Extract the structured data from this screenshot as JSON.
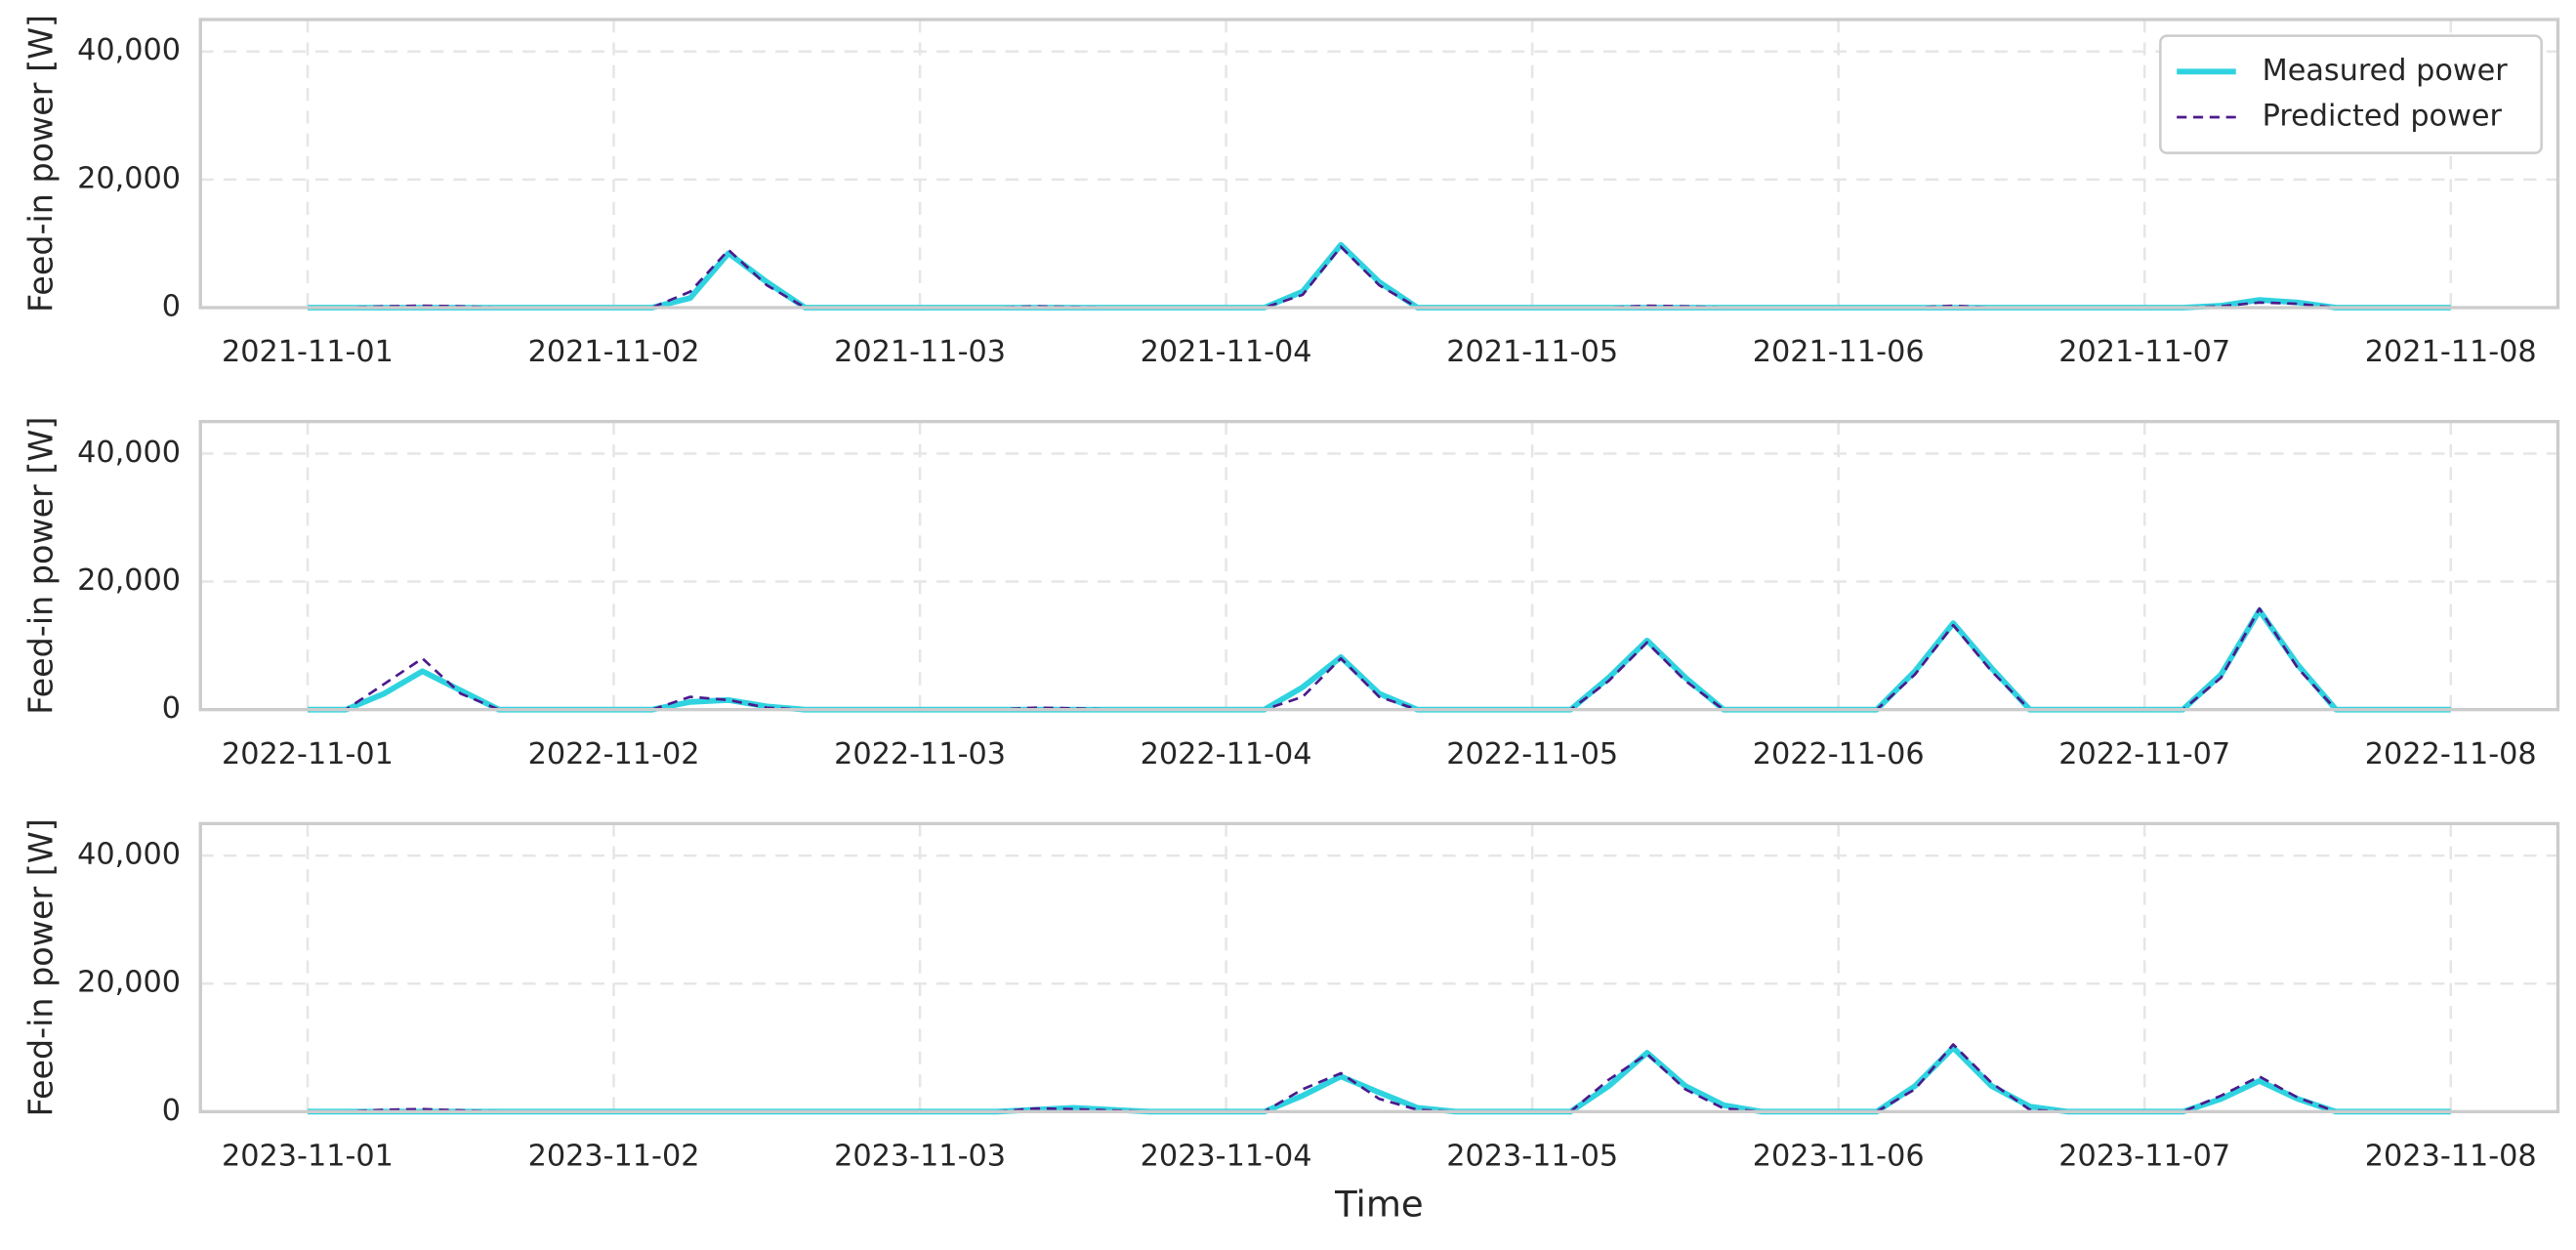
{
  "chart_data": [
    {
      "type": "line",
      "ylabel": "Feed-in power [W]",
      "x": [
        0,
        0.125,
        0.25,
        0.375,
        0.5,
        0.625,
        0.75,
        0.875,
        1,
        1.125,
        1.25,
        1.375,
        1.5,
        1.625,
        1.75,
        1.875,
        2,
        2.125,
        2.25,
        2.375,
        2.5,
        2.625,
        2.75,
        2.875,
        3,
        3.125,
        3.25,
        3.375,
        3.5,
        3.625,
        3.75,
        3.875,
        4,
        4.125,
        4.25,
        4.375,
        4.5,
        4.625,
        4.75,
        4.875,
        5,
        5.125,
        5.25,
        5.375,
        5.5,
        5.625,
        5.75,
        5.875,
        6,
        6.125,
        6.25,
        6.375,
        6.5,
        6.625,
        6.75,
        6.875,
        7
      ],
      "xlim": [
        -0.35,
        7.35
      ],
      "xticks": [
        {
          "value": 0,
          "label": "2021-11-01"
        },
        {
          "value": 1,
          "label": "2021-11-02"
        },
        {
          "value": 2,
          "label": "2021-11-03"
        },
        {
          "value": 3,
          "label": "2021-11-04"
        },
        {
          "value": 4,
          "label": "2021-11-05"
        },
        {
          "value": 5,
          "label": "2021-11-06"
        },
        {
          "value": 6,
          "label": "2021-11-07"
        },
        {
          "value": 7,
          "label": "2021-11-08"
        }
      ],
      "ylim": [
        0,
        45000
      ],
      "yticks": [
        0,
        {
          "value": 20000,
          "label": "20,000"
        },
        {
          "value": 40000,
          "label": "40,000"
        }
      ],
      "grid": true,
      "legend": "upper right",
      "series": [
        {
          "name": "Measured power",
          "color": "#2fd3e0",
          "linestyle": "solid",
          "values": [
            0,
            0,
            0,
            0,
            0,
            0,
            0,
            0,
            0,
            0,
            1500,
            8500,
            4000,
            0,
            0,
            0,
            0,
            0,
            0,
            0,
            0,
            0,
            0,
            0,
            0,
            0,
            2500,
            9800,
            4000,
            0,
            0,
            0,
            0,
            0,
            0,
            0,
            0,
            0,
            0,
            0,
            0,
            0,
            0,
            0,
            0,
            0,
            0,
            0,
            0,
            0,
            300,
            1200,
            800,
            0,
            0,
            0,
            0
          ]
        },
        {
          "name": "Predicted power",
          "color": "#4b1a8c",
          "linestyle": "dashed",
          "values": [
            0,
            0,
            200,
            300,
            200,
            0,
            0,
            0,
            0,
            0,
            2500,
            9000,
            3500,
            0,
            0,
            0,
            0,
            0,
            0,
            200,
            100,
            0,
            0,
            0,
            0,
            0,
            2000,
            9500,
            3500,
            0,
            0,
            0,
            0,
            0,
            0,
            300,
            200,
            0,
            0,
            0,
            0,
            0,
            0,
            300,
            0,
            0,
            0,
            0,
            0,
            0,
            200,
            800,
            600,
            0,
            0,
            0,
            0
          ]
        }
      ]
    },
    {
      "type": "line",
      "ylabel": "Feed-in power [W]",
      "x": [
        0,
        0.125,
        0.25,
        0.375,
        0.5,
        0.625,
        0.75,
        0.875,
        1,
        1.125,
        1.25,
        1.375,
        1.5,
        1.625,
        1.75,
        1.875,
        2,
        2.125,
        2.25,
        2.375,
        2.5,
        2.625,
        2.75,
        2.875,
        3,
        3.125,
        3.25,
        3.375,
        3.5,
        3.625,
        3.75,
        3.875,
        4,
        4.125,
        4.25,
        4.375,
        4.5,
        4.625,
        4.75,
        4.875,
        5,
        5.125,
        5.25,
        5.375,
        5.5,
        5.625,
        5.75,
        5.875,
        6,
        6.125,
        6.25,
        6.375,
        6.5,
        6.625,
        6.75,
        6.875,
        7
      ],
      "xlim": [
        -0.35,
        7.35
      ],
      "xticks": [
        {
          "value": 0,
          "label": "2022-11-01"
        },
        {
          "value": 1,
          "label": "2022-11-02"
        },
        {
          "value": 2,
          "label": "2022-11-03"
        },
        {
          "value": 3,
          "label": "2022-11-04"
        },
        {
          "value": 4,
          "label": "2022-11-05"
        },
        {
          "value": 5,
          "label": "2022-11-06"
        },
        {
          "value": 6,
          "label": "2022-11-07"
        },
        {
          "value": 7,
          "label": "2022-11-08"
        }
      ],
      "ylim": [
        0,
        45000
      ],
      "yticks": [
        0,
        {
          "value": 20000,
          "label": "20,000"
        },
        {
          "value": 40000,
          "label": "40,000"
        }
      ],
      "grid": true,
      "series": [
        {
          "color": "#2fd3e0",
          "linestyle": "solid",
          "values": [
            0,
            0,
            2500,
            6000,
            3000,
            0,
            0,
            0,
            0,
            0,
            1200,
            1500,
            500,
            0,
            0,
            0,
            0,
            0,
            0,
            0,
            0,
            0,
            0,
            0,
            0,
            0,
            3500,
            8200,
            2500,
            0,
            0,
            0,
            0,
            0,
            5000,
            10800,
            5000,
            0,
            0,
            0,
            0,
            0,
            6000,
            13500,
            6500,
            0,
            0,
            0,
            0,
            0,
            5500,
            15500,
            7000,
            0,
            0,
            0,
            0
          ]
        },
        {
          "color": "#4b1a8c",
          "linestyle": "dashed",
          "values": [
            0,
            0,
            4000,
            8000,
            2500,
            0,
            0,
            0,
            0,
            0,
            2000,
            1500,
            300,
            0,
            0,
            0,
            0,
            0,
            0,
            300,
            200,
            0,
            0,
            0,
            0,
            0,
            2000,
            8000,
            2000,
            0,
            0,
            0,
            0,
            0,
            4500,
            10500,
            4500,
            0,
            0,
            0,
            0,
            0,
            5500,
            13200,
            6000,
            0,
            0,
            0,
            0,
            0,
            5000,
            15800,
            6500,
            0,
            0,
            0,
            0
          ]
        }
      ]
    },
    {
      "type": "line",
      "ylabel": "Feed-in power [W]",
      "xlabel": "Time",
      "x": [
        0,
        0.125,
        0.25,
        0.375,
        0.5,
        0.625,
        0.75,
        0.875,
        1,
        1.125,
        1.25,
        1.375,
        1.5,
        1.625,
        1.75,
        1.875,
        2,
        2.125,
        2.25,
        2.375,
        2.5,
        2.625,
        2.75,
        2.875,
        3,
        3.125,
        3.25,
        3.375,
        3.5,
        3.625,
        3.75,
        3.875,
        4,
        4.125,
        4.25,
        4.375,
        4.5,
        4.625,
        4.75,
        4.875,
        5,
        5.125,
        5.25,
        5.375,
        5.5,
        5.625,
        5.75,
        5.875,
        6,
        6.125,
        6.25,
        6.375,
        6.5,
        6.625,
        6.75,
        6.875,
        7
      ],
      "xlim": [
        -0.35,
        7.35
      ],
      "xticks": [
        {
          "value": 0,
          "label": "2023-11-01"
        },
        {
          "value": 1,
          "label": "2023-11-02"
        },
        {
          "value": 2,
          "label": "2023-11-03"
        },
        {
          "value": 3,
          "label": "2023-11-04"
        },
        {
          "value": 4,
          "label": "2023-11-05"
        },
        {
          "value": 5,
          "label": "2023-11-06"
        },
        {
          "value": 6,
          "label": "2023-11-07"
        },
        {
          "value": 7,
          "label": "2023-11-08"
        }
      ],
      "ylim": [
        0,
        45000
      ],
      "yticks": [
        0,
        {
          "value": 20000,
          "label": "20,000"
        },
        {
          "value": 40000,
          "label": "40,000"
        }
      ],
      "grid": true,
      "series": [
        {
          "color": "#2fd3e0",
          "linestyle": "solid",
          "values": [
            0,
            0,
            0,
            0,
            0,
            0,
            0,
            0,
            0,
            0,
            0,
            0,
            0,
            0,
            0,
            0,
            0,
            0,
            0,
            300,
            600,
            300,
            0,
            0,
            0,
            0,
            2500,
            5500,
            3000,
            600,
            0,
            0,
            0,
            0,
            4000,
            9200,
            4000,
            1000,
            0,
            0,
            0,
            0,
            4000,
            10000,
            4000,
            800,
            0,
            0,
            0,
            0,
            2000,
            4800,
            2000,
            0,
            0,
            0,
            0
          ]
        },
        {
          "color": "#4b1a8c",
          "linestyle": "dashed",
          "values": [
            0,
            0,
            300,
            400,
            200,
            0,
            0,
            0,
            0,
            0,
            0,
            0,
            0,
            0,
            0,
            0,
            0,
            0,
            0,
            500,
            400,
            200,
            0,
            0,
            0,
            0,
            3500,
            6000,
            2000,
            300,
            0,
            0,
            0,
            0,
            5000,
            9000,
            3500,
            500,
            0,
            0,
            0,
            0,
            3500,
            10500,
            4500,
            300,
            0,
            0,
            0,
            0,
            2500,
            5500,
            2200,
            0,
            0,
            0,
            0
          ]
        }
      ]
    }
  ]
}
